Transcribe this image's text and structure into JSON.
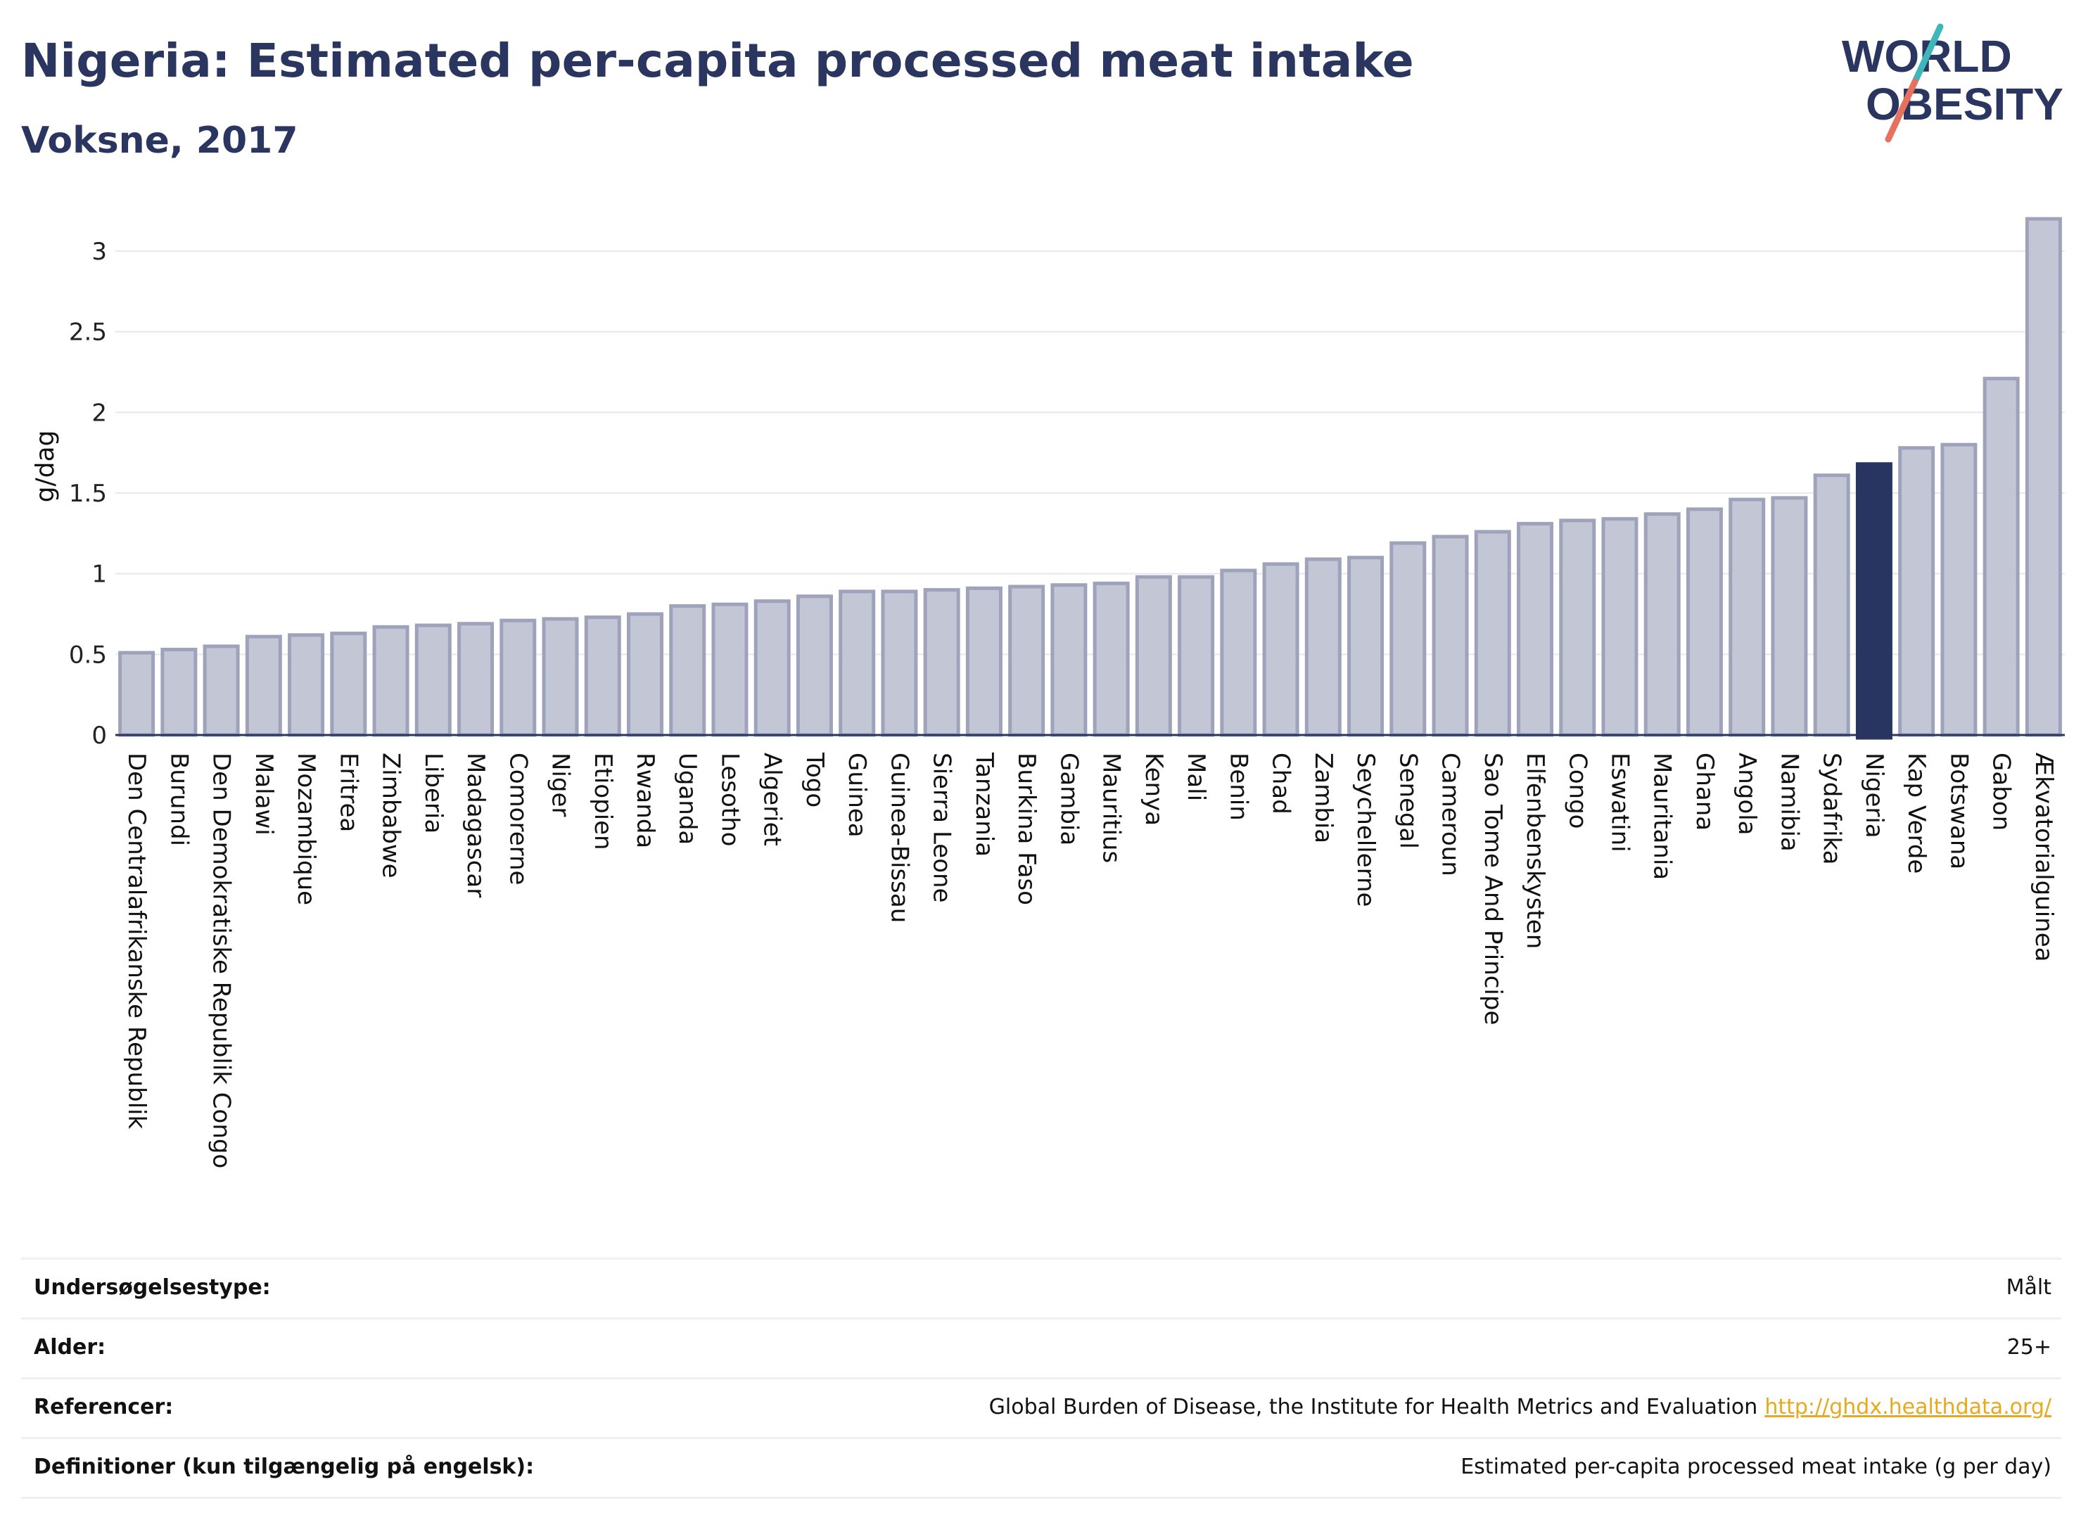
{
  "header": {
    "title": "Nigeria: Estimated per-capita processed meat intake",
    "subtitle": "Voksne, 2017"
  },
  "logo": {
    "line1": "WORLD",
    "line2": "OBESITY",
    "icon": "world-obesity-logo"
  },
  "colors": {
    "bar": "#c2c6d5",
    "bar_border": "#9ea3bb",
    "highlight": "#283560",
    "text": "#2a3560",
    "grid": "#e6e8ee",
    "link": "#e8a91c"
  },
  "chart_data": {
    "type": "bar",
    "title": "Nigeria: Estimated per-capita processed meat intake",
    "subtitle": "Voksne, 2017",
    "ylabel": "g/dag",
    "xlabel": "",
    "ylim": [
      0,
      3.25
    ],
    "yticks": [
      0,
      0.5,
      1,
      1.5,
      2,
      2.5,
      3
    ],
    "ytick_labels": [
      "0",
      "0.5",
      "1",
      "1.5",
      "2",
      "2.5",
      "3"
    ],
    "grid": true,
    "highlight": "Nigeria",
    "categories": [
      "Den Centralafrikanske Republik",
      "Burundi",
      "Den Demokratiske Republik Congo",
      "Malawi",
      "Mozambique",
      "Eritrea",
      "Zimbabwe",
      "Liberia",
      "Madagascar",
      "Comorerne",
      "Niger",
      "Etiopien",
      "Rwanda",
      "Uganda",
      "Lesotho",
      "Algeriet",
      "Togo",
      "Guinea",
      "Guinea-Bissau",
      "Sierra Leone",
      "Tanzania",
      "Burkina Faso",
      "Gambia",
      "Mauritius",
      "Kenya",
      "Mali",
      "Benin",
      "Chad",
      "Zambia",
      "Seychellerne",
      "Senegal",
      "Cameroun",
      "Sao Tome And Principe",
      "Elfenbenskysten",
      "Congo",
      "Eswatini",
      "Mauritania",
      "Ghana",
      "Angola",
      "Namibia",
      "Sydafrika",
      "Nigeria",
      "Kap Verde",
      "Botswana",
      "Gabon",
      "Ækvatorialguinea"
    ],
    "values": [
      0.51,
      0.53,
      0.55,
      0.61,
      0.62,
      0.63,
      0.67,
      0.68,
      0.69,
      0.71,
      0.72,
      0.73,
      0.75,
      0.8,
      0.81,
      0.83,
      0.86,
      0.89,
      0.89,
      0.9,
      0.91,
      0.92,
      0.93,
      0.94,
      0.98,
      0.98,
      1.02,
      1.06,
      1.09,
      1.1,
      1.19,
      1.23,
      1.26,
      1.31,
      1.33,
      1.34,
      1.37,
      1.4,
      1.46,
      1.47,
      1.61,
      1.68,
      1.78,
      1.8,
      2.21,
      3.2
    ]
  },
  "info": [
    {
      "key": "Undersøgelsestype:",
      "value": "Målt"
    },
    {
      "key": "Alder:",
      "value": "25+"
    },
    {
      "key": "Referencer:",
      "value": "Global Burden of Disease, the Institute for Health Metrics and Evaluation",
      "link": "http://ghdx.healthdata.org/"
    },
    {
      "key": "Definitioner (kun tilgængelig på engelsk):",
      "value": "Estimated per-capita processed meat intake (g per day)"
    }
  ]
}
